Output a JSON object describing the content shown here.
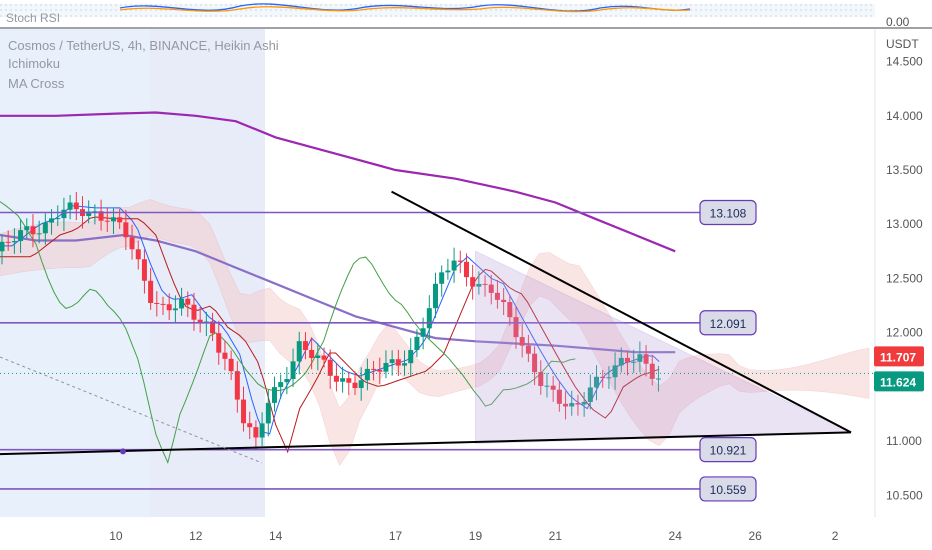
{
  "header": {
    "indicator_top": "Stoch RSI",
    "symbol_line": "Cosmos / TetherUS, 4h, BINANCE, Heikin Ashi",
    "indicators": [
      "Ichimoku",
      "MA Cross"
    ]
  },
  "top_pane": {
    "value_label": "0.00"
  },
  "chart_data": {
    "type": "candlestick",
    "title": "Cosmos / TetherUS, 4h, BINANCE, Heikin Ashi",
    "unit": "USDT",
    "y_ticks": [
      "14.500",
      "14.000",
      "13.500",
      "13.000",
      "12.500",
      "12.000",
      "11.500",
      "11.000",
      "10.500"
    ],
    "ylim": [
      10.3,
      14.8
    ],
    "x_ticks": [
      {
        "label": "10",
        "d": 10
      },
      {
        "label": "12",
        "d": 12
      },
      {
        "label": "14",
        "d": 14
      },
      {
        "label": "17",
        "d": 17
      },
      {
        "label": "19",
        "d": 19
      },
      {
        "label": "21",
        "d": 21
      },
      {
        "label": "24",
        "d": 24
      },
      {
        "label": "26",
        "d": 26
      },
      {
        "label": "2",
        "d": 28
      }
    ],
    "xlim": [
      7.1,
      29.0
    ],
    "levels": [
      {
        "label": "13.108",
        "value": 13.108
      },
      {
        "label": "12.091",
        "value": 12.091
      },
      {
        "label": "10.921",
        "value": 10.921
      },
      {
        "label": "10.559",
        "value": 10.559
      }
    ],
    "price_badges": [
      {
        "label": "11.707",
        "value": 11.707,
        "color": "#ef3b3b"
      },
      {
        "label": "11.624",
        "value": 11.624,
        "color": "#089981"
      }
    ],
    "anchors": [
      [
        7.1,
        12.75
      ],
      [
        7.8,
        12.95
      ],
      [
        8.2,
        13.0
      ],
      [
        8.6,
        13.12
      ],
      [
        9.2,
        13.1
      ],
      [
        9.8,
        13.1
      ],
      [
        10.2,
        12.95
      ],
      [
        10.6,
        12.55
      ],
      [
        10.9,
        12.3
      ],
      [
        11.2,
        12.25
      ],
      [
        11.6,
        12.3
      ],
      [
        12.0,
        12.1
      ],
      [
        12.4,
        12.0
      ],
      [
        12.8,
        11.75
      ],
      [
        13.2,
        11.2
      ],
      [
        13.5,
        10.95
      ],
      [
        13.8,
        11.35
      ],
      [
        14.2,
        11.6
      ],
      [
        14.6,
        11.9
      ],
      [
        15.0,
        11.75
      ],
      [
        15.4,
        11.6
      ],
      [
        15.8,
        11.55
      ],
      [
        16.2,
        11.6
      ],
      [
        16.6,
        11.65
      ],
      [
        17.0,
        11.7
      ],
      [
        17.4,
        11.85
      ],
      [
        17.8,
        12.2
      ],
      [
        18.2,
        12.55
      ],
      [
        18.5,
        12.65
      ],
      [
        18.8,
        12.55
      ],
      [
        19.1,
        12.45
      ],
      [
        19.4,
        12.4
      ],
      [
        19.7,
        12.2
      ],
      [
        20.0,
        12.0
      ],
      [
        20.3,
        11.8
      ],
      [
        20.7,
        11.55
      ],
      [
        21.1,
        11.35
      ],
      [
        21.5,
        11.25
      ],
      [
        21.9,
        11.55
      ],
      [
        22.3,
        11.65
      ],
      [
        22.7,
        11.7
      ],
      [
        23.1,
        11.75
      ],
      [
        23.4,
        11.65
      ],
      [
        23.7,
        11.62
      ]
    ],
    "series": [
      {
        "name": "MA Cross long",
        "color": "#9c27b0",
        "points": [
          [
            7.1,
            14.0
          ],
          [
            8.5,
            14.0
          ],
          [
            10.0,
            14.02
          ],
          [
            11.0,
            14.03
          ],
          [
            12.0,
            14.0
          ],
          [
            13.0,
            13.95
          ],
          [
            14.0,
            13.8
          ],
          [
            15.5,
            13.65
          ],
          [
            17.0,
            13.5
          ],
          [
            18.5,
            13.42
          ],
          [
            20.0,
            13.3
          ],
          [
            21.0,
            13.2
          ],
          [
            22.0,
            13.05
          ],
          [
            23.0,
            12.9
          ],
          [
            24.0,
            12.75
          ]
        ]
      },
      {
        "name": "MA Cross short",
        "color": "#8a6fc7",
        "points": [
          [
            7.1,
            12.9
          ],
          [
            8.0,
            12.85
          ],
          [
            9.0,
            12.85
          ],
          [
            10.2,
            12.9
          ],
          [
            11.0,
            12.85
          ],
          [
            12.0,
            12.75
          ],
          [
            13.0,
            12.6
          ],
          [
            14.0,
            12.45
          ],
          [
            15.0,
            12.3
          ],
          [
            16.0,
            12.15
          ],
          [
            17.0,
            12.05
          ],
          [
            18.0,
            11.95
          ],
          [
            19.0,
            11.92
          ],
          [
            20.0,
            11.9
          ],
          [
            21.0,
            11.88
          ],
          [
            22.0,
            11.85
          ],
          [
            23.0,
            11.82
          ],
          [
            24.0,
            11.82
          ]
        ]
      }
    ],
    "trendlines": [
      {
        "name": "upper trendline",
        "from": [
          16.9,
          13.3
        ],
        "to": [
          28.4,
          11.08
        ]
      },
      {
        "name": "lower trendline",
        "from": [
          7.1,
          10.88
        ],
        "to": [
          28.4,
          11.08
        ]
      }
    ]
  }
}
